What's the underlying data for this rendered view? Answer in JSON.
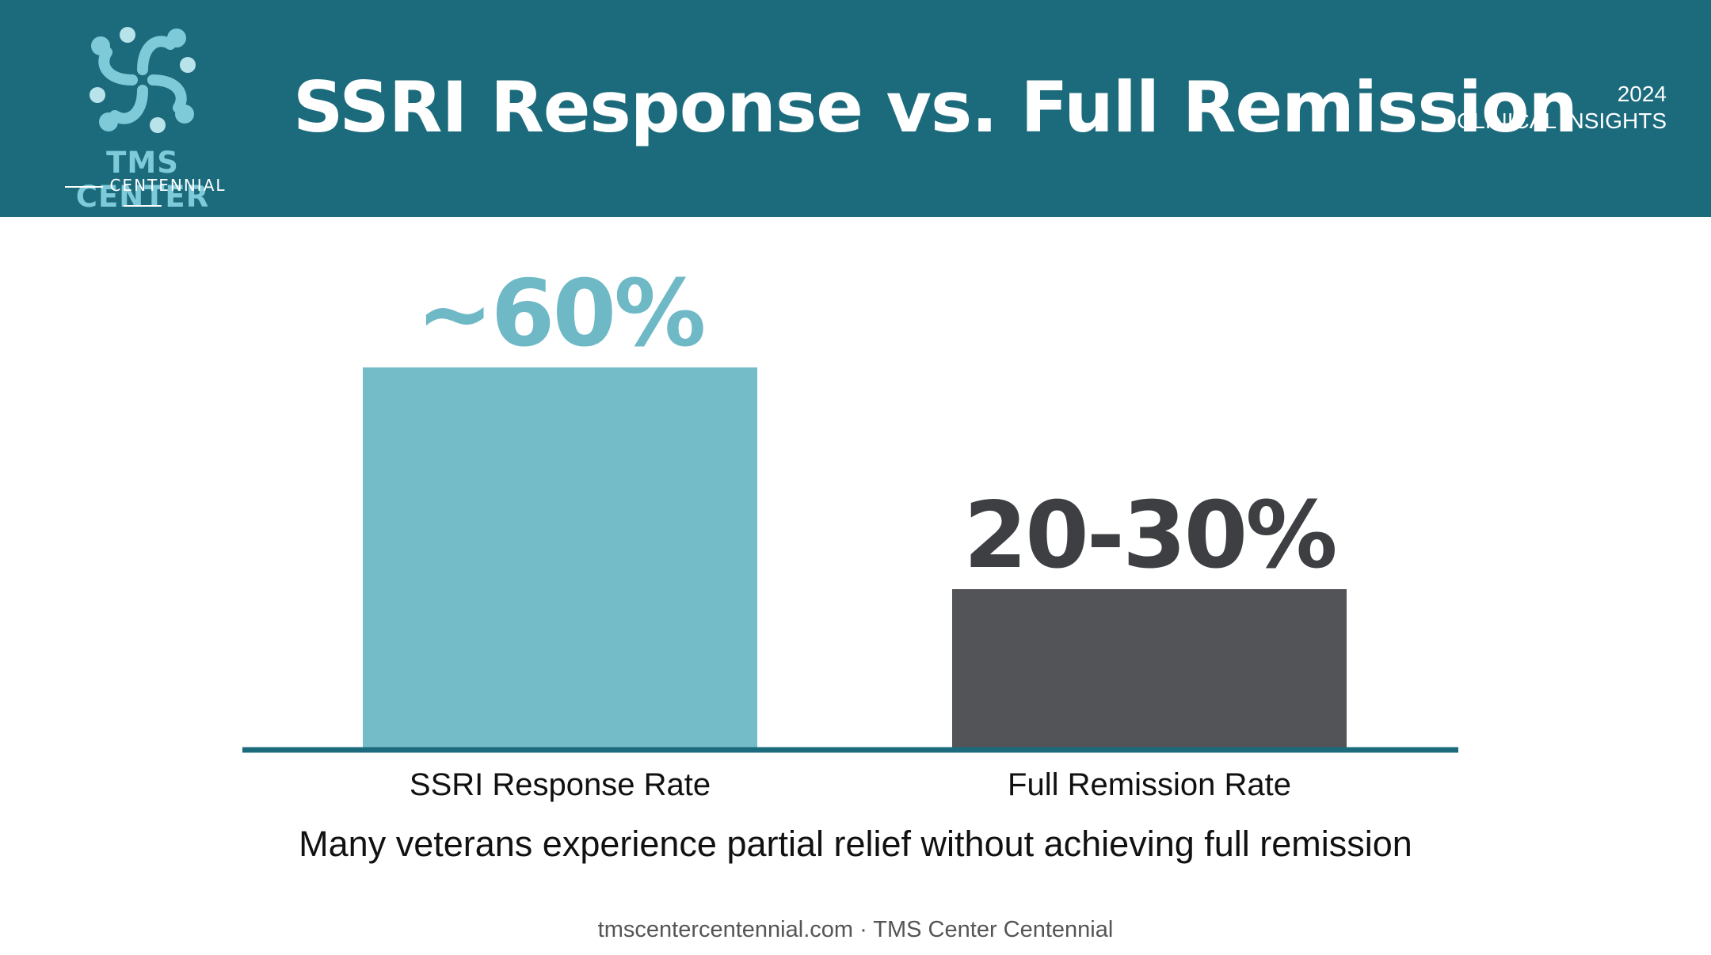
{
  "header": {
    "title": "SSRI Response vs. Full Remission",
    "year": "2024",
    "badge": "CLINICAL INSIGHTS"
  },
  "logo": {
    "name": "TMS CENTER",
    "sub": "CENTENNIAL",
    "icon": "four-figure-circle-logo-icon"
  },
  "chart_data": {
    "type": "bar",
    "title": "",
    "xlabel": "",
    "ylabel": "",
    "grid": false,
    "legend": "none",
    "categories": [
      "SSRI Response Rate",
      "Full Remission Rate"
    ],
    "values": [
      60,
      25
    ],
    "value_labels": [
      "~60%",
      "20-30%"
    ],
    "colors": [
      "#75bcc9",
      "#525457"
    ],
    "label_colors": [
      "#6fb9c7",
      "#3d3f42"
    ],
    "ylim": [
      0,
      70
    ],
    "axis_color": "#1c6b7d"
  },
  "caption": "Many veterans experience partial relief without achieving full remission",
  "footer": "tmscentercentennial.com · TMS Center Centennial"
}
